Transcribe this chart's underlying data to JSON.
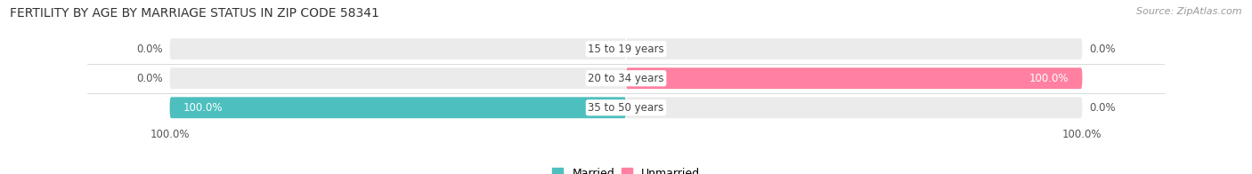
{
  "title": "FERTILITY BY AGE BY MARRIAGE STATUS IN ZIP CODE 58341",
  "source": "Source: ZipAtlas.com",
  "categories": [
    "15 to 19 years",
    "20 to 34 years",
    "35 to 50 years"
  ],
  "married": [
    0.0,
    0.0,
    100.0
  ],
  "unmarried": [
    0.0,
    100.0,
    0.0
  ],
  "married_color": "#4DBFBF",
  "unmarried_color": "#FF80A0",
  "bar_bg_color": "#EBEBEB",
  "bar_height": 0.72,
  "xlim": 100.0,
  "title_fontsize": 10.0,
  "source_fontsize": 8.0,
  "label_fontsize": 8.5,
  "category_fontsize": 8.5,
  "legend_fontsize": 9,
  "axis_label_fontsize": 8.5,
  "background_color": "#FFFFFF",
  "grid_color": "#D0D0D0"
}
